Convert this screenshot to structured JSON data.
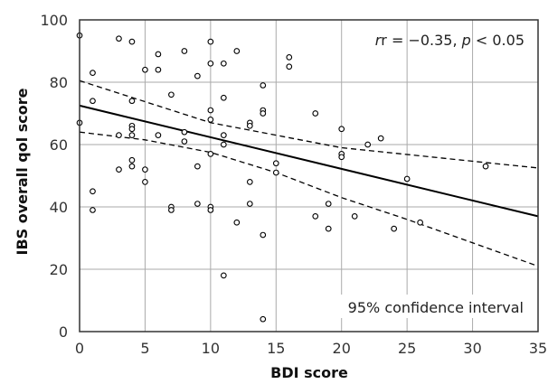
{
  "chart_data": {
    "type": "scatter",
    "xlabel": "BDI score",
    "ylabel": "IBS overall qol score",
    "xlim": [
      0,
      35
    ],
    "ylim": [
      0,
      100
    ],
    "xticks": [
      0,
      5,
      10,
      15,
      20,
      25,
      30,
      35
    ],
    "yticks": [
      0,
      20,
      40,
      60,
      80,
      100
    ],
    "grid": true,
    "stat_prefix": "r = ",
    "stat_r": "−0.35",
    "stat_sep": ", ",
    "stat_p_letter": "p",
    "stat_p_rest": " < 0.05",
    "ci_label": "95% confidence interval",
    "points": [
      [
        0,
        95
      ],
      [
        0,
        67
      ],
      [
        1,
        83
      ],
      [
        1,
        74
      ],
      [
        1,
        45
      ],
      [
        1,
        39
      ],
      [
        3,
        94
      ],
      [
        3,
        63
      ],
      [
        3,
        52
      ],
      [
        4,
        93
      ],
      [
        4,
        74
      ],
      [
        4,
        66
      ],
      [
        4,
        65
      ],
      [
        4,
        63
      ],
      [
        4,
        55
      ],
      [
        4,
        53
      ],
      [
        5,
        84
      ],
      [
        5,
        52
      ],
      [
        5,
        48
      ],
      [
        6,
        89
      ],
      [
        6,
        84
      ],
      [
        6,
        63
      ],
      [
        7,
        76
      ],
      [
        7,
        40
      ],
      [
        7,
        39
      ],
      [
        8,
        90
      ],
      [
        8,
        64
      ],
      [
        8,
        61
      ],
      [
        9,
        82
      ],
      [
        9,
        53
      ],
      [
        9,
        41
      ],
      [
        10,
        93
      ],
      [
        10,
        86
      ],
      [
        10,
        71
      ],
      [
        10,
        68
      ],
      [
        10,
        57
      ],
      [
        10,
        40
      ],
      [
        10,
        39
      ],
      [
        11,
        86
      ],
      [
        11,
        75
      ],
      [
        11,
        63
      ],
      [
        11,
        60
      ],
      [
        11,
        18
      ],
      [
        12,
        90
      ],
      [
        12,
        35
      ],
      [
        13,
        67
      ],
      [
        13,
        66
      ],
      [
        13,
        48
      ],
      [
        13,
        41
      ],
      [
        14,
        79
      ],
      [
        14,
        71
      ],
      [
        14,
        70
      ],
      [
        14,
        31
      ],
      [
        14,
        4
      ],
      [
        15,
        54
      ],
      [
        15,
        51
      ],
      [
        16,
        88
      ],
      [
        16,
        85
      ],
      [
        18,
        70
      ],
      [
        18,
        37
      ],
      [
        19,
        41
      ],
      [
        19,
        33
      ],
      [
        20,
        65
      ],
      [
        20,
        57
      ],
      [
        20,
        56
      ],
      [
        21,
        37
      ],
      [
        22,
        60
      ],
      [
        23,
        62
      ],
      [
        24,
        33
      ],
      [
        25,
        49
      ],
      [
        26,
        35
      ],
      [
        31,
        53
      ]
    ],
    "series": [
      {
        "type": "line",
        "style": "solid",
        "x": [
          0,
          35
        ],
        "y": [
          72.5,
          37
        ]
      },
      {
        "type": "line",
        "style": "dashed",
        "x": [
          0,
          10,
          20,
          35
        ],
        "y": [
          80.5,
          67,
          59,
          52.5
        ]
      },
      {
        "type": "line",
        "style": "dashed",
        "x": [
          0,
          5,
          10,
          15,
          20,
          25,
          35
        ],
        "y": [
          64,
          61.5,
          57.5,
          51,
          43,
          36,
          21
        ]
      }
    ]
  }
}
